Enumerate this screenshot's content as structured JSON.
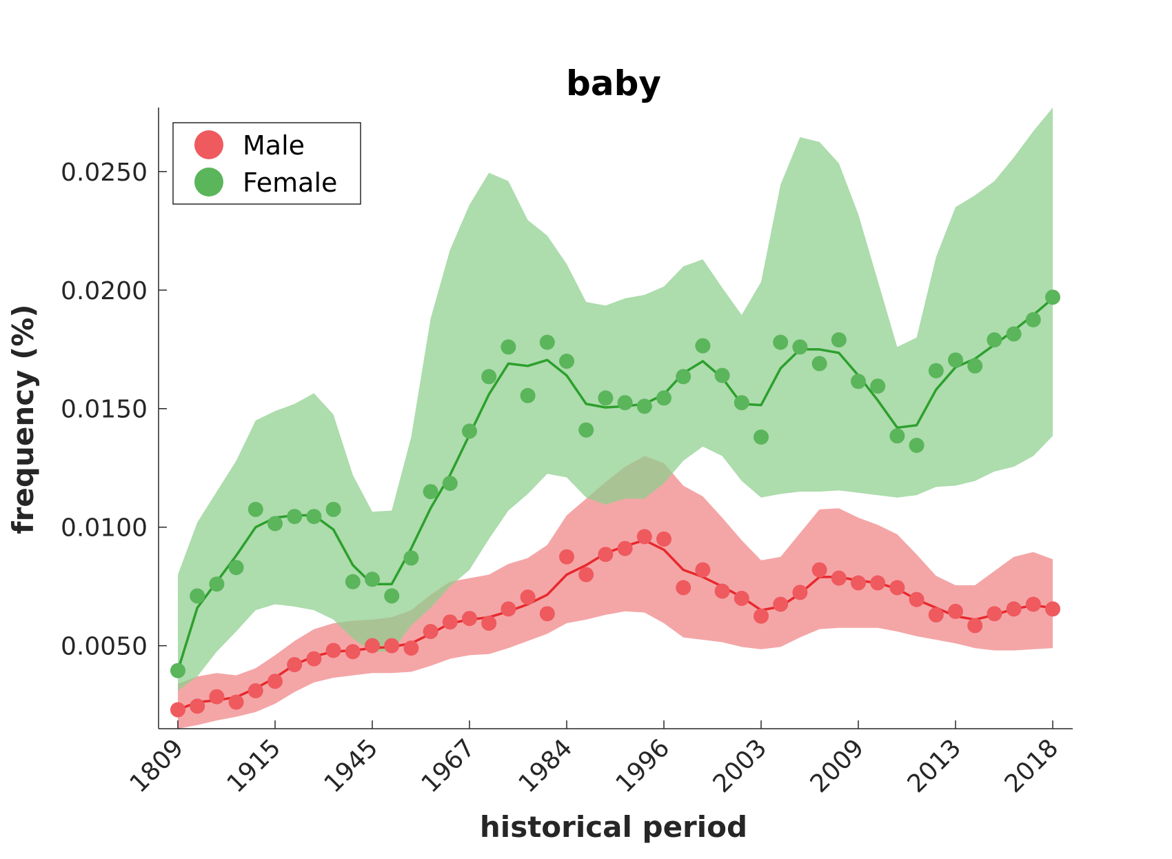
{
  "chart_data": {
    "type": "line",
    "title": "baby",
    "xlabel": "historical period",
    "ylabel": "frequency (%)",
    "ylim": [
      0.0015,
      0.0277
    ],
    "yticks": [
      "0.0050",
      "0.0100",
      "0.0150",
      "0.0200",
      "0.0250"
    ],
    "xtick_labels": [
      "1809",
      "1915",
      "1945",
      "1967",
      "1984",
      "1996",
      "2003",
      "2009",
      "2013",
      "2018"
    ],
    "xtick_positions": [
      0,
      5,
      10,
      15,
      20,
      25,
      30,
      35,
      40,
      45
    ],
    "legend": {
      "position": "top-left"
    },
    "series": [
      {
        "name": "Male",
        "color": "#e8282d",
        "marker_color": "#ee5a5e",
        "band_color": "#f08385",
        "points": [
          0.0023,
          0.00245,
          0.00285,
          0.00262,
          0.0031,
          0.0035,
          0.0042,
          0.00445,
          0.0048,
          0.00475,
          0.005,
          0.005,
          0.0049,
          0.0056,
          0.006,
          0.00615,
          0.00595,
          0.00655,
          0.00705,
          0.00635,
          0.00875,
          0.008,
          0.00885,
          0.0091,
          0.0096,
          0.0095,
          0.00745,
          0.0082,
          0.0073,
          0.007,
          0.00625,
          0.00675,
          0.00725,
          0.0082,
          0.00785,
          0.00765,
          0.00765,
          0.00745,
          0.00695,
          0.0063,
          0.00645,
          0.00585,
          0.00635,
          0.00655,
          0.00675,
          0.00655
        ],
        "trend": [
          0.0023,
          0.00262,
          0.0027,
          0.00283,
          0.0032,
          0.00365,
          0.0042,
          0.00455,
          0.00475,
          0.0048,
          0.0049,
          0.00495,
          0.0051,
          0.0055,
          0.00595,
          0.0061,
          0.0062,
          0.00645,
          0.00675,
          0.00715,
          0.008,
          0.0084,
          0.0089,
          0.0092,
          0.00945,
          0.00905,
          0.0082,
          0.0079,
          0.0075,
          0.00705,
          0.0065,
          0.00665,
          0.0072,
          0.0079,
          0.0079,
          0.00775,
          0.00765,
          0.0074,
          0.00695,
          0.0066,
          0.00625,
          0.0061,
          0.0063,
          0.00655,
          0.0067,
          0.0066
        ],
        "band_upper": [
          0.0034,
          0.0037,
          0.00385,
          0.00375,
          0.00405,
          0.0046,
          0.0052,
          0.0057,
          0.00595,
          0.00605,
          0.0061,
          0.0062,
          0.0065,
          0.00715,
          0.0077,
          0.00785,
          0.008,
          0.00845,
          0.0087,
          0.00925,
          0.0105,
          0.0112,
          0.0119,
          0.01255,
          0.013,
          0.0127,
          0.01175,
          0.0113,
          0.0104,
          0.00945,
          0.0086,
          0.00875,
          0.00975,
          0.01075,
          0.0108,
          0.0104,
          0.0101,
          0.0097,
          0.00885,
          0.00795,
          0.00755,
          0.00755,
          0.00815,
          0.00875,
          0.00895,
          0.00865
        ],
        "band_lower": [
          0.0015,
          0.00165,
          0.00185,
          0.002,
          0.0022,
          0.00255,
          0.00305,
          0.00345,
          0.00365,
          0.00375,
          0.00385,
          0.00385,
          0.0039,
          0.00415,
          0.00445,
          0.0046,
          0.00465,
          0.0049,
          0.0052,
          0.0055,
          0.00595,
          0.0061,
          0.0063,
          0.00645,
          0.0064,
          0.00595,
          0.00535,
          0.00525,
          0.00515,
          0.00495,
          0.00485,
          0.00495,
          0.00535,
          0.0057,
          0.00575,
          0.00575,
          0.00575,
          0.0056,
          0.0054,
          0.00525,
          0.0051,
          0.0049,
          0.0048,
          0.0048,
          0.00485,
          0.0049
        ]
      },
      {
        "name": "Female",
        "color": "#2ca02c",
        "marker_color": "#5bb55b",
        "band_color": "#8ecf8e",
        "points": [
          0.00395,
          0.0071,
          0.0076,
          0.0083,
          0.01075,
          0.01015,
          0.01045,
          0.01045,
          0.01075,
          0.0077,
          0.0078,
          0.0071,
          0.0087,
          0.0115,
          0.01185,
          0.01405,
          0.01635,
          0.0176,
          0.01555,
          0.0178,
          0.017,
          0.0141,
          0.01545,
          0.01525,
          0.0151,
          0.01545,
          0.01635,
          0.01765,
          0.0164,
          0.01525,
          0.0138,
          0.0178,
          0.0176,
          0.0169,
          0.0179,
          0.01615,
          0.01595,
          0.01385,
          0.01345,
          0.0166,
          0.01705,
          0.0168,
          0.0179,
          0.01815,
          0.01875,
          0.0197
        ],
        "trend": [
          0.00395,
          0.0066,
          0.0077,
          0.0088,
          0.01,
          0.0104,
          0.0105,
          0.0105,
          0.0099,
          0.0084,
          0.0076,
          0.0076,
          0.0091,
          0.0108,
          0.0122,
          0.0139,
          0.0156,
          0.0169,
          0.0168,
          0.01705,
          0.0164,
          0.0152,
          0.01505,
          0.0151,
          0.0152,
          0.0156,
          0.0165,
          0.017,
          0.0163,
          0.0152,
          0.01515,
          0.0167,
          0.0175,
          0.0175,
          0.01735,
          0.0164,
          0.01535,
          0.0142,
          0.0143,
          0.0158,
          0.01675,
          0.0171,
          0.0177,
          0.0183,
          0.01895,
          0.01965
        ],
        "band_upper": [
          0.008,
          0.0102,
          0.0115,
          0.0128,
          0.0145,
          0.0149,
          0.0152,
          0.01565,
          0.01475,
          0.0122,
          0.01065,
          0.0107,
          0.0138,
          0.0188,
          0.0217,
          0.0236,
          0.02495,
          0.0246,
          0.02295,
          0.0223,
          0.0211,
          0.0195,
          0.01935,
          0.01965,
          0.0198,
          0.02015,
          0.021,
          0.0213,
          0.0201,
          0.01895,
          0.02035,
          0.02445,
          0.02645,
          0.02625,
          0.02535,
          0.0232,
          0.0204,
          0.0176,
          0.018,
          0.0214,
          0.0235,
          0.024,
          0.0246,
          0.0256,
          0.0267,
          0.0277
        ],
        "band_lower": [
          0.0031,
          0.0037,
          0.00475,
          0.0056,
          0.0065,
          0.00675,
          0.00665,
          0.0065,
          0.0061,
          0.0053,
          0.00475,
          0.00475,
          0.00585,
          0.0066,
          0.0075,
          0.0082,
          0.0095,
          0.0107,
          0.0114,
          0.01225,
          0.0121,
          0.01125,
          0.01095,
          0.0112,
          0.0112,
          0.01185,
          0.0128,
          0.0134,
          0.013,
          0.01195,
          0.01125,
          0.0114,
          0.0115,
          0.0115,
          0.01155,
          0.01145,
          0.01135,
          0.01125,
          0.01135,
          0.0117,
          0.01175,
          0.01195,
          0.01235,
          0.01255,
          0.013,
          0.01385
        ]
      }
    ]
  }
}
